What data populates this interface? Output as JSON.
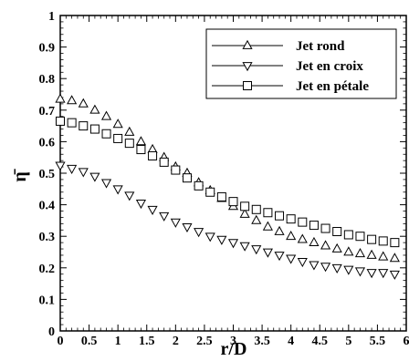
{
  "chart_data": {
    "type": "line",
    "xlabel": "r/D",
    "ylabel": "η̄",
    "xlim": [
      0,
      6
    ],
    "ylim": [
      0,
      1
    ],
    "xticks": [
      0,
      0.5,
      1,
      1.5,
      2,
      2.5,
      3,
      3.5,
      4,
      4.5,
      5,
      5.5,
      6
    ],
    "xtick_labels": [
      "0",
      "0.5",
      "1",
      "1.5",
      "2",
      "2.5",
      "3",
      "3.5",
      "4",
      "4.5",
      "5",
      "5.5",
      "6"
    ],
    "yticks": [
      0,
      0.1,
      0.2,
      0.3,
      0.4,
      0.5,
      0.6,
      0.7,
      0.8,
      0.9,
      1
    ],
    "ytick_labels": [
      "0",
      "0.1",
      "0.2",
      "0.3",
      "0.4",
      "0.5",
      "0.6",
      "0.7",
      "0.8",
      "0.9",
      "1"
    ],
    "grid": false,
    "legend_position": "top-right",
    "x": [
      0,
      0.2,
      0.4,
      0.6,
      0.8,
      1.0,
      1.2,
      1.4,
      1.6,
      1.8,
      2.0,
      2.2,
      2.4,
      2.6,
      2.8,
      3.0,
      3.2,
      3.4,
      3.6,
      3.8,
      4.0,
      4.2,
      4.4,
      4.6,
      4.8,
      5.0,
      5.2,
      5.4,
      5.6,
      5.8
    ],
    "series": [
      {
        "name": "Jet rond",
        "marker": "triangle-up",
        "values": [
          0.735,
          0.73,
          0.72,
          0.7,
          0.68,
          0.655,
          0.63,
          0.6,
          0.575,
          0.55,
          0.52,
          0.5,
          0.47,
          0.445,
          0.42,
          0.395,
          0.37,
          0.35,
          0.33,
          0.315,
          0.3,
          0.29,
          0.28,
          0.27,
          0.26,
          0.25,
          0.245,
          0.24,
          0.235,
          0.23
        ]
      },
      {
        "name": "Jet en croix",
        "marker": "triangle-down",
        "values": [
          0.525,
          0.515,
          0.505,
          0.49,
          0.47,
          0.45,
          0.43,
          0.405,
          0.385,
          0.365,
          0.345,
          0.33,
          0.315,
          0.3,
          0.29,
          0.28,
          0.27,
          0.26,
          0.25,
          0.24,
          0.23,
          0.22,
          0.21,
          0.205,
          0.2,
          0.195,
          0.19,
          0.185,
          0.185,
          0.18
        ]
      },
      {
        "name": "Jet en pétale",
        "marker": "square",
        "values": [
          0.665,
          0.66,
          0.65,
          0.64,
          0.625,
          0.61,
          0.595,
          0.575,
          0.555,
          0.535,
          0.51,
          0.485,
          0.46,
          0.44,
          0.425,
          0.41,
          0.395,
          0.385,
          0.375,
          0.365,
          0.355,
          0.345,
          0.335,
          0.325,
          0.315,
          0.305,
          0.3,
          0.29,
          0.285,
          0.28
        ]
      }
    ]
  }
}
